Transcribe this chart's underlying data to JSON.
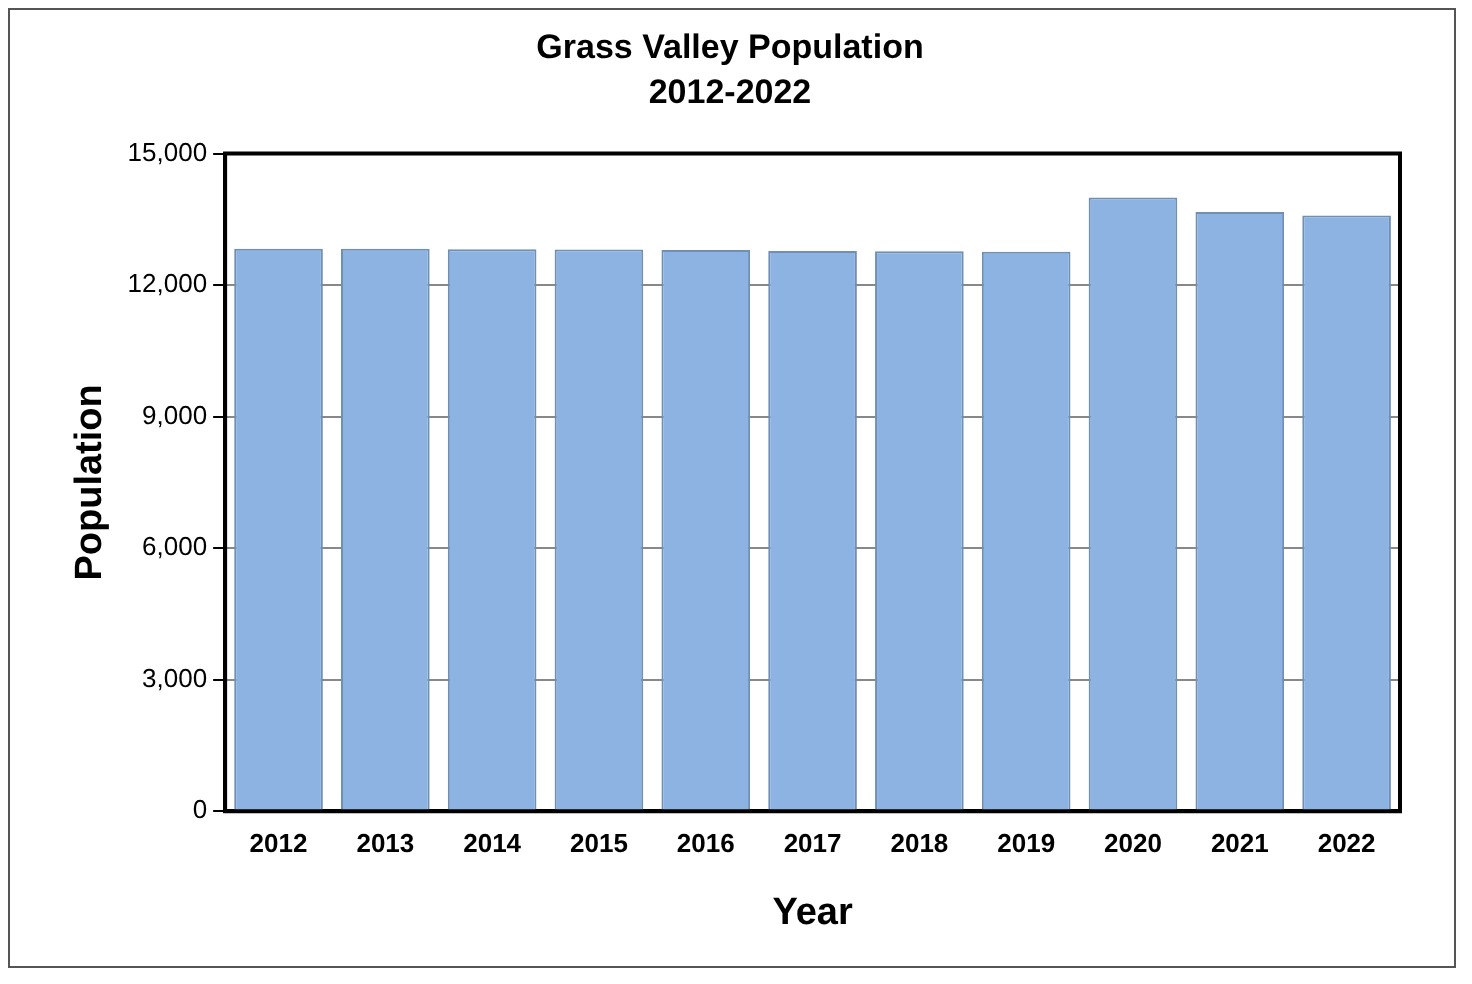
{
  "chart_data": {
    "type": "bar",
    "title": "Grass Valley Population",
    "subtitle": "2012-2022",
    "xlabel": "Year",
    "ylabel": "Population",
    "categories": [
      "2012",
      "2013",
      "2014",
      "2015",
      "2016",
      "2017",
      "2018",
      "2019",
      "2020",
      "2021",
      "2022"
    ],
    "values": [
      12830,
      12830,
      12820,
      12810,
      12800,
      12780,
      12770,
      12760,
      14000,
      13670,
      13590
    ],
    "color": "#8db3e2",
    "ylim": [
      0,
      15000
    ],
    "yticks": [
      {
        "value": 0,
        "label": "0"
      },
      {
        "value": 3000,
        "label": "3,000"
      },
      {
        "value": 6000,
        "label": "6,000"
      },
      {
        "value": 9000,
        "label": "9,000"
      },
      {
        "value": 12000,
        "label": "12,000"
      },
      {
        "value": 15000,
        "label": "15,000"
      }
    ],
    "grid": "y",
    "legend": false
  }
}
